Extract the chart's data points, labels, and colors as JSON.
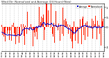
{
  "title": "Wind Dir: Normalized and Average (24 Hours)(New)",
  "bg_color": "#ffffff",
  "plot_bg_color": "#ffffff",
  "grid_color": "#aaaaaa",
  "bar_color": "#ff2200",
  "line_color": "#0000cc",
  "legend_bar_label": "Normalized",
  "legend_line_label": "Average",
  "ylim": [
    -1.2,
    1.2
  ],
  "yticks": [
    1.0,
    0.5,
    0.0,
    -1.0
  ],
  "ytick_labels": [
    "1",
    ".5",
    "0",
    "-1"
  ],
  "n_points": 200,
  "seed": 7
}
